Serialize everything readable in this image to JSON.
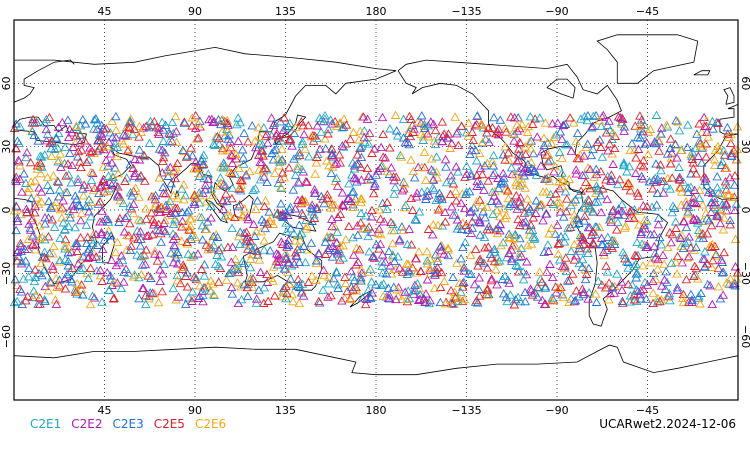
{
  "map": {
    "projection": "cylindrical equidistant",
    "lon_range": [
      0,
      360
    ],
    "lat_range": [
      -90,
      90
    ],
    "top_lon_ticks": [
      "45",
      "90",
      "135",
      "180",
      "−135",
      "−90",
      "−45"
    ],
    "bottom_lon_ticks": [
      "45",
      "90",
      "135",
      "180",
      "−135",
      "−90",
      "−45"
    ],
    "lat_ticks": [
      "60",
      "30",
      "0",
      "−30",
      "−60"
    ],
    "marker_shape": "open-triangle",
    "sample_lat_band": [
      -45,
      45
    ]
  },
  "legend": [
    {
      "label": "C2E1",
      "color": "#1ea7c8"
    },
    {
      "label": "C2E2",
      "color": "#b519b5"
    },
    {
      "label": "C2E3",
      "color": "#1f6fd6"
    },
    {
      "label": "C2E5",
      "color": "#e0202a"
    },
    {
      "label": "C2E6",
      "color": "#f0a818"
    }
  ],
  "product_label": "UCARwet2.2024-12-06"
}
